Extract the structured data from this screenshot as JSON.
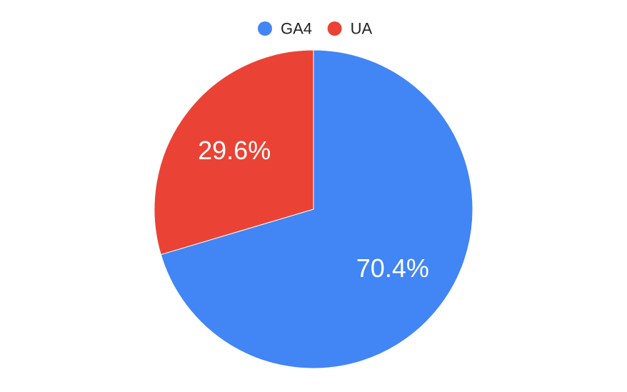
{
  "chart_data": {
    "type": "pie",
    "title": "",
    "legend_position": "top-center",
    "start_angle": "12 o'clock",
    "direction": "clockwise",
    "slices": [
      {
        "label": "GA4",
        "value": 70.4,
        "display": "70.4%",
        "color": "#4285F4"
      },
      {
        "label": "UA",
        "value": 29.6,
        "display": "29.6%",
        "color": "#EA4335"
      }
    ]
  }
}
